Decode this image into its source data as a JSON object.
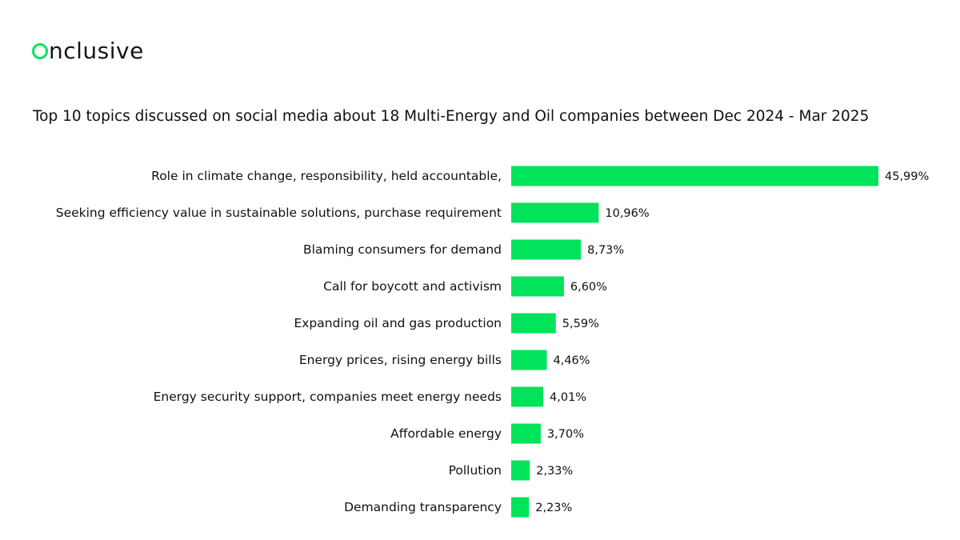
{
  "brand": {
    "logo_text": "nclusive",
    "logo_full": "Onclusive",
    "accent_color": "#00e35b"
  },
  "chart_data": {
    "type": "bar",
    "orientation": "horizontal",
    "title": "Top 10 topics discussed on social media about 18 Multi-Energy and Oil companies between Dec 2024 - Mar 2025",
    "categories": [
      "Role in climate change, responsibility, held accountable,",
      "Seeking efficiency value in sustainable solutions, purchase requirement",
      "Blaming consumers for demand",
      "Call for boycott and activism",
      "Expanding oil and gas production",
      "Energy prices, rising energy bills",
      "Energy security support, companies meet energy needs",
      "Affordable energy",
      "Pollution",
      "Demanding transparency"
    ],
    "values": [
      45.99,
      10.96,
      8.73,
      6.6,
      5.59,
      4.46,
      4.01,
      3.7,
      2.33,
      2.23
    ],
    "value_labels": [
      "45,99%",
      "10,96%",
      "8,73%",
      "6,60%",
      "5,59%",
      "4,46%",
      "4,01%",
      "3,70%",
      "2,33%",
      "2,23%"
    ],
    "bar_color": "#00e35b",
    "grid": false,
    "legend": "none",
    "xlim": [
      0,
      45.99
    ]
  }
}
